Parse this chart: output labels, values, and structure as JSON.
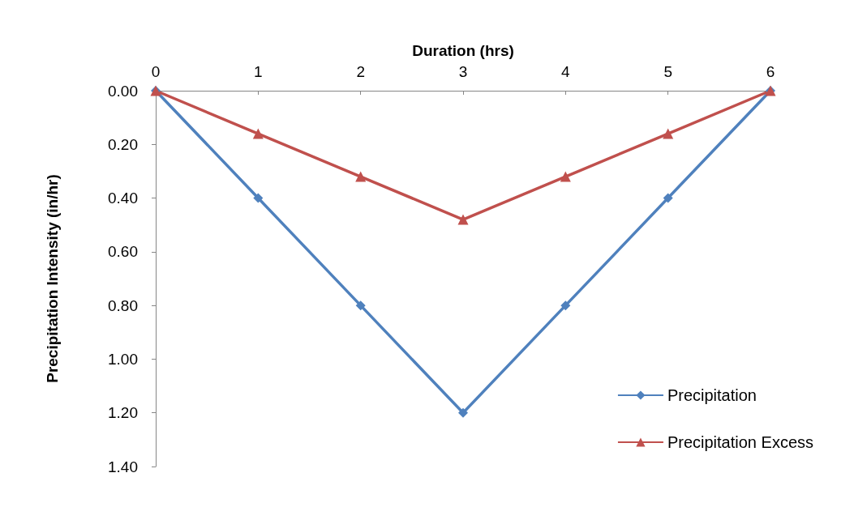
{
  "chart_data": {
    "type": "line",
    "xlabel": "Duration (hrs)",
    "ylabel": "Precipitation Intensity (in/hr)",
    "x": [
      0,
      1,
      2,
      3,
      4,
      5,
      6
    ],
    "series": [
      {
        "name": "Precipitation",
        "color": "#4f81bd",
        "marker": "diamond",
        "values": [
          0,
          0.4,
          0.8,
          1.2,
          0.8,
          0.4,
          0
        ]
      },
      {
        "name": "Precipitation Excess",
        "color": "#c0504d",
        "marker": "triangle",
        "values": [
          0,
          0.16,
          0.32,
          0.48,
          0.32,
          0.16,
          0
        ]
      }
    ],
    "xlim": [
      0,
      6
    ],
    "xticks": [
      0,
      1,
      2,
      3,
      4,
      5,
      6
    ],
    "ylim": [
      1.4,
      0
    ],
    "yticks": [
      {
        "value": 0,
        "label": "0.00"
      },
      {
        "value": 0.2,
        "label": "0.20"
      },
      {
        "value": 0.4,
        "label": "0.40"
      },
      {
        "value": 0.6,
        "label": "0.60"
      },
      {
        "value": 0.8,
        "label": "0.80"
      },
      {
        "value": 1.0,
        "label": "1.00"
      },
      {
        "value": 1.2,
        "label": "1.20"
      },
      {
        "value": 1.4,
        "label": "1.40"
      }
    ],
    "legend": "bottom right"
  }
}
